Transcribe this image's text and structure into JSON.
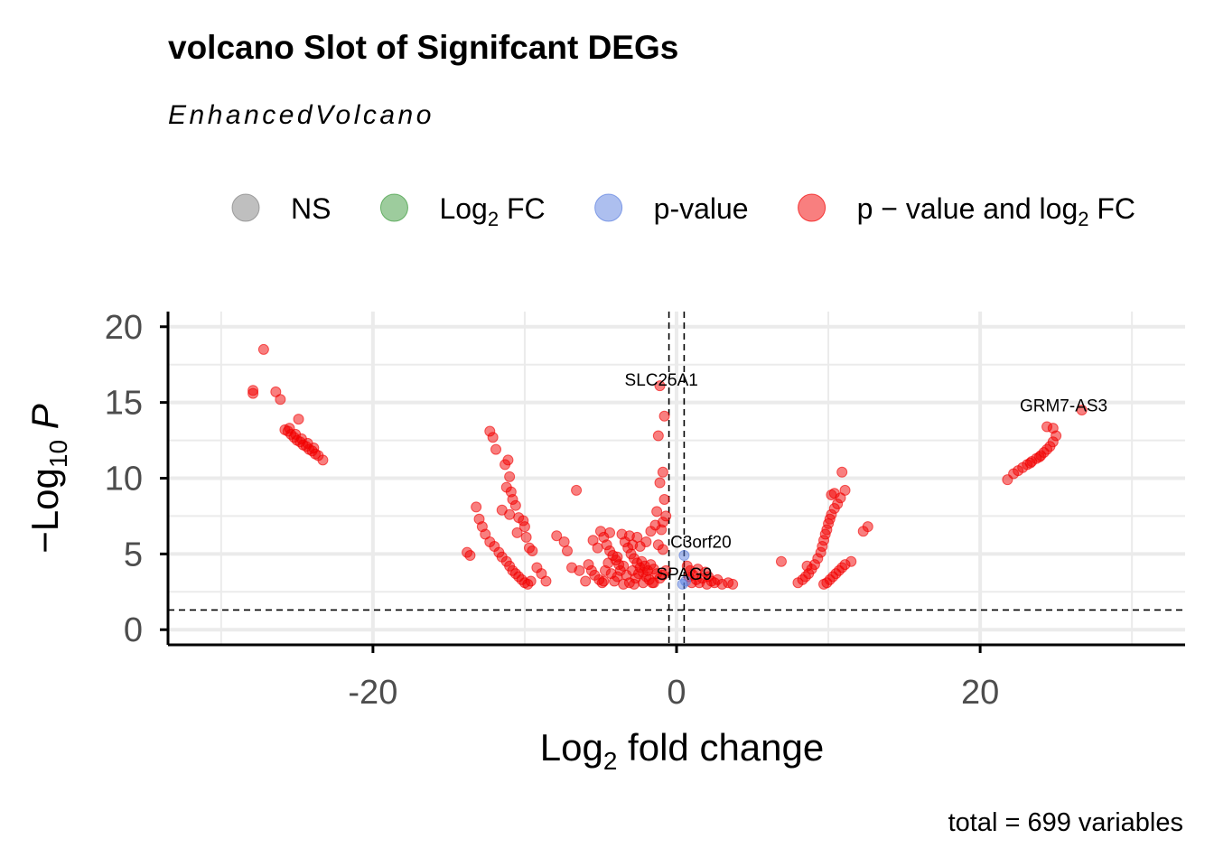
{
  "chart_data": {
    "type": "scatter",
    "title": "volcano Slot of Signifcant DEGs",
    "subtitle": "EnhancedVolcano",
    "caption": "total = 699 variables",
    "xlabel": {
      "main": "Log",
      "sub": "2",
      "rest": " fold change"
    },
    "ylabel": {
      "minus": "−",
      "main": "Log",
      "sub": "10",
      "p": "P"
    },
    "xlim": [
      -33.5,
      33.5
    ],
    "ylim": [
      -1,
      21
    ],
    "x_ticks": [
      -20,
      0,
      20
    ],
    "x_tick_labels": [
      "-20",
      "0",
      "20"
    ],
    "y_ticks": [
      0,
      5,
      10,
      15,
      20
    ],
    "y_tick_labels": [
      "0",
      "5",
      "10",
      "15",
      "20"
    ],
    "x_minor_grid": [
      -30,
      -10,
      10,
      30
    ],
    "y_minor_grid": [
      2.5,
      7.5,
      12.5,
      17.5
    ],
    "fc_cutoff": 0.5,
    "p_cutoff_log": 1.3,
    "grid": true,
    "legend": {
      "placement": "top",
      "items": [
        {
          "key": "ns",
          "label": "NS",
          "sub": "",
          "after": "",
          "color": "#808080"
        },
        {
          "key": "fc",
          "label": "Log",
          "sub": "2",
          "after": " FC",
          "color": "#3c9a3c"
        },
        {
          "key": "p",
          "label": "p-value",
          "sub": "",
          "after": "",
          "color": "#5b7fe0"
        },
        {
          "key": "both",
          "label": "p − value and log",
          "sub": "2",
          "after": " FC",
          "color": "#f20000"
        }
      ]
    },
    "labels": [
      {
        "text": "SLC25A1",
        "x": -1.0,
        "y": 16.1
      },
      {
        "text": "GRM7-AS3",
        "x": 25.5,
        "y": 14.4
      },
      {
        "text": "C3orf20",
        "x": 1.6,
        "y": 5.4
      },
      {
        "text": "SPAG9",
        "x": 0.5,
        "y": 3.3
      }
    ],
    "series": [
      {
        "class": "both",
        "points": [
          [
            -27.2,
            18.5
          ],
          [
            -27.9,
            15.6
          ],
          [
            -27.9,
            15.8
          ],
          [
            -26.4,
            15.7
          ],
          [
            -26.1,
            15.2
          ],
          [
            -24.9,
            13.9
          ],
          [
            -25.8,
            13.2
          ],
          [
            -25.6,
            13.1
          ],
          [
            -25.4,
            12.9
          ],
          [
            -25.2,
            12.7
          ],
          [
            -25.0,
            12.5
          ],
          [
            -24.8,
            12.4
          ],
          [
            -24.6,
            12.2
          ],
          [
            -24.4,
            12.1
          ],
          [
            -24.2,
            11.9
          ],
          [
            -24.0,
            11.8
          ],
          [
            -23.8,
            11.6
          ],
          [
            -23.6,
            11.5
          ],
          [
            -23.3,
            11.2
          ],
          [
            -25.5,
            13.3
          ],
          [
            -25.1,
            12.9
          ],
          [
            -24.7,
            12.6
          ],
          [
            -24.3,
            12.3
          ],
          [
            -23.9,
            12.0
          ],
          [
            -12.3,
            13.1
          ],
          [
            -12.1,
            12.7
          ],
          [
            -11.9,
            11.9
          ],
          [
            -11.3,
            10.9
          ],
          [
            -11.1,
            11.2
          ],
          [
            -11.0,
            10.1
          ],
          [
            -11.2,
            9.4
          ],
          [
            -10.9,
            9.1
          ],
          [
            -10.8,
            8.6
          ],
          [
            -10.6,
            8.2
          ],
          [
            -11.5,
            7.9
          ],
          [
            -11.0,
            7.6
          ],
          [
            -10.4,
            7.4
          ],
          [
            -10.1,
            7.2
          ],
          [
            -10.0,
            6.8
          ],
          [
            -10.5,
            6.4
          ],
          [
            -9.9,
            6.1
          ],
          [
            -13.2,
            8.1
          ],
          [
            -13.0,
            7.3
          ],
          [
            -12.8,
            6.8
          ],
          [
            -12.6,
            6.3
          ],
          [
            -12.3,
            5.8
          ],
          [
            -12.0,
            5.5
          ],
          [
            -11.7,
            5.1
          ],
          [
            -11.5,
            4.8
          ],
          [
            -11.2,
            4.5
          ],
          [
            -11.0,
            4.2
          ],
          [
            -10.8,
            3.9
          ],
          [
            -10.6,
            3.7
          ],
          [
            -10.4,
            3.5
          ],
          [
            -10.2,
            3.3
          ],
          [
            -10.0,
            3.1
          ],
          [
            -9.8,
            3.0
          ],
          [
            -9.6,
            3.2
          ],
          [
            -13.8,
            5.1
          ],
          [
            -13.6,
            4.9
          ],
          [
            -9.7,
            5.4
          ],
          [
            -9.5,
            5.2
          ],
          [
            -9.2,
            4.1
          ],
          [
            -8.9,
            3.7
          ],
          [
            -8.6,
            3.2
          ],
          [
            -7.9,
            6.2
          ],
          [
            -6.6,
            9.2
          ],
          [
            -7.4,
            5.8
          ],
          [
            -7.2,
            5.2
          ],
          [
            -6.9,
            4.1
          ],
          [
            -6.4,
            3.9
          ],
          [
            -6.0,
            3.2
          ],
          [
            -5.5,
            5.9
          ],
          [
            -5.2,
            5.4
          ],
          [
            -5.0,
            6.5
          ],
          [
            -4.8,
            6.1
          ],
          [
            -4.6,
            5.6
          ],
          [
            -4.4,
            5.2
          ],
          [
            -4.2,
            4.9
          ],
          [
            -4.0,
            4.6
          ],
          [
            -3.8,
            4.3
          ],
          [
            -3.6,
            6.3
          ],
          [
            -3.4,
            5.8
          ],
          [
            -3.2,
            5.4
          ],
          [
            -3.0,
            5.0
          ],
          [
            -2.8,
            4.7
          ],
          [
            -2.6,
            4.4
          ],
          [
            -2.4,
            4.1
          ],
          [
            -2.2,
            3.8
          ],
          [
            -2.0,
            3.5
          ],
          [
            -1.8,
            3.3
          ],
          [
            -1.6,
            3.1
          ],
          [
            -5.8,
            4.3
          ],
          [
            -5.6,
            3.9
          ],
          [
            -5.4,
            3.6
          ],
          [
            -5.1,
            3.3
          ],
          [
            -4.9,
            3.1
          ],
          [
            -4.7,
            3.9
          ],
          [
            -4.5,
            4.4
          ],
          [
            -4.3,
            3.7
          ],
          [
            -4.1,
            3.2
          ],
          [
            -3.9,
            3.5
          ],
          [
            -3.7,
            3.9
          ],
          [
            -3.5,
            4.2
          ],
          [
            -3.3,
            3.6
          ],
          [
            -3.1,
            3.1
          ],
          [
            -2.9,
            3.9
          ],
          [
            -2.7,
            3.4
          ],
          [
            -2.5,
            3.7
          ],
          [
            -2.3,
            4.5
          ],
          [
            -2.1,
            4.2
          ],
          [
            -1.9,
            3.9
          ],
          [
            -1.7,
            4.3
          ],
          [
            -1.5,
            4.0
          ],
          [
            -1.3,
            3.7
          ],
          [
            -1.1,
            3.4
          ],
          [
            -0.9,
            3.6
          ],
          [
            -0.7,
            3.9
          ],
          [
            -2.6,
            6.1
          ],
          [
            -2.0,
            5.8
          ],
          [
            -1.7,
            6.5
          ],
          [
            -1.4,
            6.9
          ],
          [
            -1.2,
            5.6
          ],
          [
            -0.9,
            5.3
          ],
          [
            -2.4,
            5.5
          ],
          [
            -3.1,
            6.2
          ],
          [
            -4.4,
            6.4
          ],
          [
            -2.9,
            5.6
          ],
          [
            -1.1,
            16.1
          ],
          [
            -0.8,
            14.1
          ],
          [
            -1.2,
            12.8
          ],
          [
            -0.9,
            10.4
          ],
          [
            -1.1,
            9.7
          ],
          [
            -0.8,
            8.6
          ],
          [
            -1.3,
            7.8
          ],
          [
            -0.7,
            7.5
          ],
          [
            -0.9,
            7.1
          ],
          [
            -1.0,
            6.6
          ],
          [
            -3.5,
            3.0
          ],
          [
            -2.8,
            3.0
          ],
          [
            -2.2,
            3.1
          ],
          [
            -1.5,
            3.1
          ],
          [
            -4.8,
            3.2
          ],
          [
            -3.9,
            4.8
          ],
          [
            0.7,
            4.2
          ],
          [
            0.9,
            3.9
          ],
          [
            1.1,
            3.6
          ],
          [
            1.3,
            3.3
          ],
          [
            1.5,
            3.1
          ],
          [
            1.7,
            3.4
          ],
          [
            1.9,
            3.8
          ],
          [
            2.1,
            3.5
          ],
          [
            2.3,
            3.2
          ],
          [
            2.5,
            3.1
          ],
          [
            2.7,
            3.3
          ],
          [
            3.0,
            3.0
          ],
          [
            3.4,
            3.1
          ],
          [
            3.7,
            3.0
          ],
          [
            1.0,
            3.1
          ],
          [
            1.4,
            4.0
          ],
          [
            2.0,
            3.0
          ],
          [
            0.8,
            3.5
          ],
          [
            6.9,
            4.5
          ],
          [
            8.0,
            3.1
          ],
          [
            8.3,
            3.3
          ],
          [
            8.5,
            3.5
          ],
          [
            8.7,
            3.7
          ],
          [
            8.9,
            4.0
          ],
          [
            9.1,
            4.3
          ],
          [
            9.3,
            4.7
          ],
          [
            9.5,
            5.1
          ],
          [
            9.6,
            5.5
          ],
          [
            9.7,
            5.9
          ],
          [
            9.8,
            6.3
          ],
          [
            9.9,
            6.6
          ],
          [
            10.0,
            7.0
          ],
          [
            10.1,
            7.3
          ],
          [
            10.2,
            7.6
          ],
          [
            10.4,
            8.0
          ],
          [
            10.6,
            8.3
          ],
          [
            10.8,
            8.7
          ],
          [
            11.1,
            9.2
          ],
          [
            10.9,
            10.4
          ],
          [
            10.4,
            9.0
          ],
          [
            10.2,
            8.9
          ],
          [
            9.7,
            3.0
          ],
          [
            9.9,
            3.1
          ],
          [
            10.1,
            3.3
          ],
          [
            10.3,
            3.5
          ],
          [
            10.5,
            3.7
          ],
          [
            10.7,
            3.9
          ],
          [
            10.9,
            4.1
          ],
          [
            11.1,
            4.3
          ],
          [
            11.5,
            4.5
          ],
          [
            12.3,
            6.5
          ],
          [
            12.6,
            6.8
          ],
          [
            8.6,
            4.2
          ],
          [
            21.8,
            9.9
          ],
          [
            22.2,
            10.3
          ],
          [
            22.5,
            10.5
          ],
          [
            22.8,
            10.7
          ],
          [
            23.1,
            10.9
          ],
          [
            23.4,
            11.1
          ],
          [
            23.7,
            11.3
          ],
          [
            24.0,
            11.5
          ],
          [
            24.2,
            11.7
          ],
          [
            24.4,
            11.9
          ],
          [
            24.6,
            12.1
          ],
          [
            24.8,
            12.4
          ],
          [
            25.0,
            12.8
          ],
          [
            24.4,
            13.4
          ],
          [
            24.8,
            13.3
          ],
          [
            26.7,
            14.5
          ],
          [
            23.3,
            11.0
          ],
          [
            23.9,
            11.4
          ]
        ]
      },
      {
        "class": "p",
        "points": [
          [
            0.5,
            4.9
          ],
          [
            0.6,
            3.2
          ],
          [
            0.4,
            3.0
          ]
        ]
      }
    ]
  }
}
